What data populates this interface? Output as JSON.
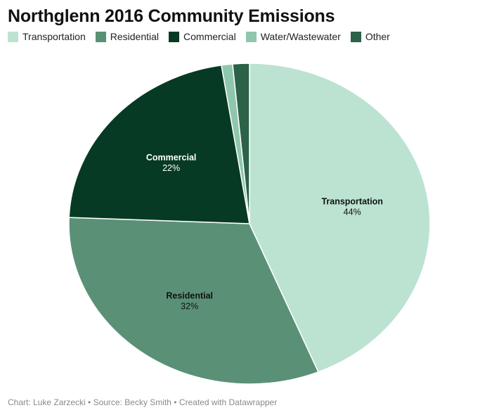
{
  "title": "Northglenn 2016 Community Emissions",
  "footer": "Chart: Luke Zarzecki • Source: Becky Smith • Created with Datawrapper",
  "chart_data": {
    "type": "pie",
    "title": "Northglenn 2016 Community Emissions",
    "legend_position": "top",
    "slices": [
      {
        "label": "Transportation",
        "value": 44,
        "value_label": "44%",
        "color": "#bce3d2",
        "text_color": "#111111",
        "show_label": true
      },
      {
        "label": "Residential",
        "value": 32,
        "value_label": "32%",
        "color": "#5a9176",
        "text_color": "#111111",
        "show_label": true
      },
      {
        "label": "Commercial",
        "value": 22,
        "value_label": "22%",
        "color": "#063a24",
        "text_color": "#ffffff",
        "show_label": true
      },
      {
        "label": "Water/Wastewater",
        "value": 1,
        "value_label": "",
        "color": "#8fc7ad",
        "text_color": "#111111",
        "show_label": false
      },
      {
        "label": "Other",
        "value": 1.5,
        "value_label": "",
        "color": "#2b6248",
        "text_color": "#ffffff",
        "show_label": false
      }
    ]
  }
}
